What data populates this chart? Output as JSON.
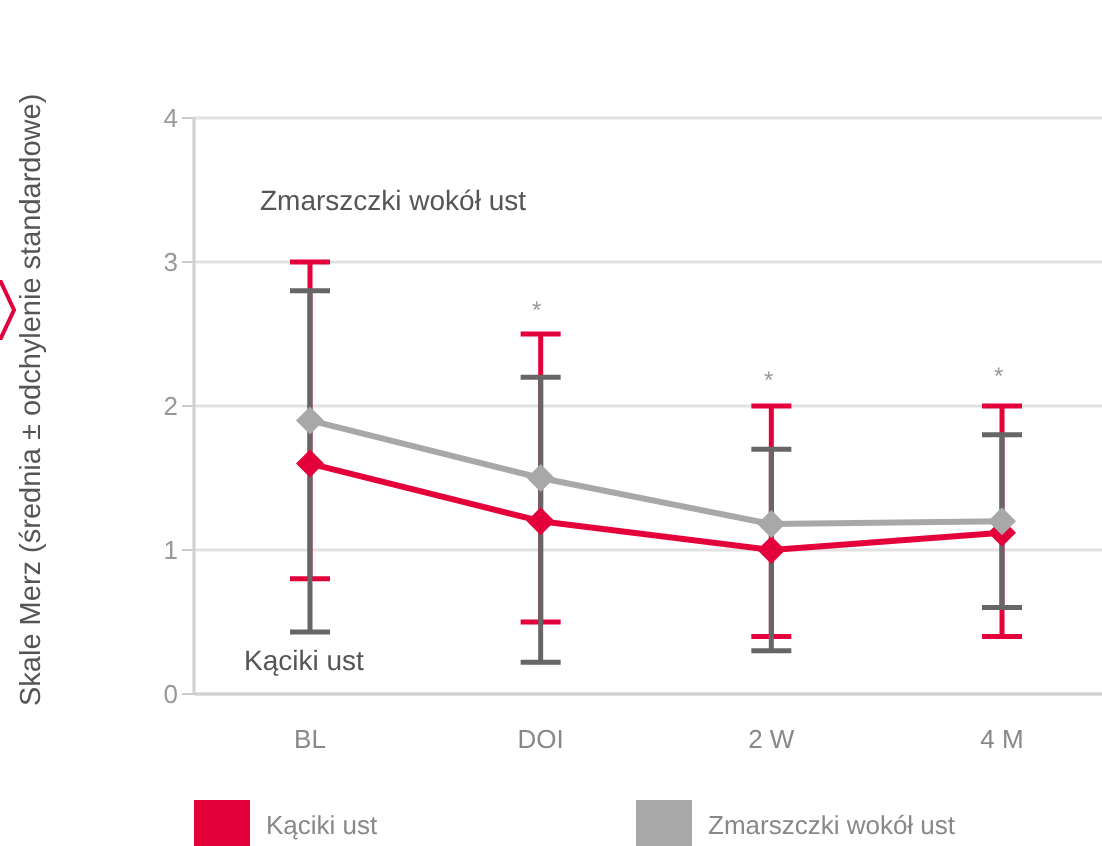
{
  "chart_data": {
    "type": "line",
    "ylabel": "Skale Merz (średnia ± odchylenie standardowe)",
    "categories": [
      "BL",
      "DOI",
      "2 W",
      "4 M"
    ],
    "series": [
      {
        "name": "Kąciki ust",
        "color": "#e4003a",
        "values": [
          1.6,
          1.2,
          1.0,
          1.12
        ],
        "errors": [
          [
            0.8,
            3.0
          ],
          [
            0.5,
            2.5
          ],
          [
            0.4,
            2.0
          ],
          [
            0.4,
            2.0
          ]
        ]
      },
      {
        "name": "Zmarszczki wokół ust",
        "color": "#a8a8a8",
        "values": [
          1.9,
          1.5,
          1.18,
          1.2
        ],
        "errors": [
          [
            0.43,
            2.8
          ],
          [
            0.22,
            2.2
          ],
          [
            0.3,
            1.7
          ],
          [
            0.6,
            1.8
          ]
        ]
      }
    ],
    "ylim": [
      0,
      4
    ],
    "yticks": [
      0,
      1,
      2,
      3,
      4
    ],
    "grid": "y",
    "legend": "bottom",
    "marker": "diamond",
    "line_style": "solid",
    "annotations": [
      "Zmarszczki wokół ust",
      "Kąciki ust",
      "*",
      "*",
      "*"
    ]
  }
}
